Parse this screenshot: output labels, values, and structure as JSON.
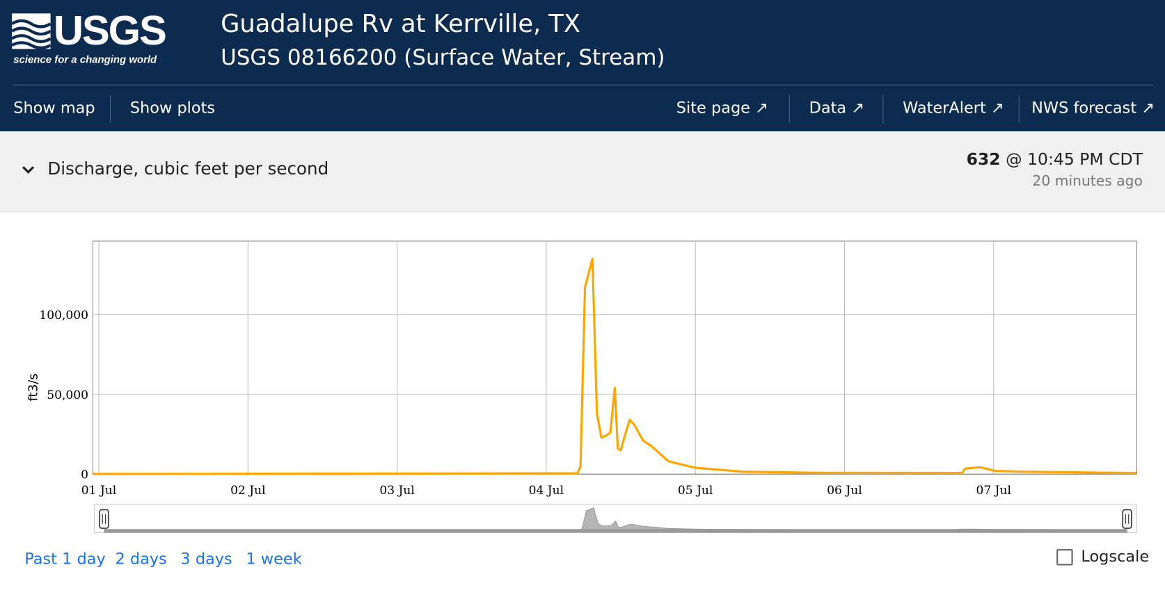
{
  "header": {
    "logo_text": "USGS",
    "logo_tagline": "science for a changing world",
    "title": "Guadalupe Rv at Kerrville, TX",
    "subtitle": "USGS 08166200 (Surface Water, Stream)"
  },
  "nav": {
    "left": [
      "Show map",
      "Show plots"
    ],
    "right": [
      "Site page",
      "Data",
      "WaterAlert",
      "NWS forecast"
    ]
  },
  "parameter": {
    "name": "Discharge, cubic feet per second",
    "latest_value": "632",
    "latest_time": "@ 10:45 PM CDT",
    "age": "20 minutes ago"
  },
  "chart_data": {
    "type": "line",
    "ylabel": "ft3/s",
    "x": [
      -0.04,
      3.21,
      3.23,
      3.26,
      3.31,
      3.34,
      3.37,
      3.4,
      3.43,
      3.46,
      3.48,
      3.5,
      3.53,
      3.56,
      3.59,
      3.65,
      3.7,
      3.82,
      4.0,
      4.32,
      4.82,
      5.79,
      5.81,
      5.91,
      6.01,
      6.21,
      6.96
    ],
    "series": [
      {
        "color": "#ffa500",
        "values": [
          100,
          500,
          5000,
          117000,
          135000,
          38000,
          23000,
          24000,
          26000,
          54000,
          16000,
          15000,
          25000,
          34000,
          31000,
          21000,
          18000,
          8000,
          4000,
          1500,
          800,
          700,
          3500,
          4300,
          2000,
          1500,
          632
        ]
      }
    ],
    "xlim": [
      -0.04,
      6.96
    ],
    "xticks": [
      {
        "value": 0,
        "label": "01 Jul"
      },
      {
        "value": 1,
        "label": "02 Jul"
      },
      {
        "value": 2,
        "label": "03 Jul"
      },
      {
        "value": 3,
        "label": "04 Jul"
      },
      {
        "value": 4,
        "label": "05 Jul"
      },
      {
        "value": 5,
        "label": "06 Jul"
      },
      {
        "value": 6,
        "label": "07 Jul"
      }
    ],
    "ylim": [
      0,
      146000
    ],
    "yticks": [
      0,
      {
        "value": 50000,
        "label": "50,000"
      },
      {
        "value": 100000,
        "label": "100,000"
      }
    ],
    "grid": true,
    "log_scale": false
  },
  "time_ranges": [
    "Past 1 day",
    "2 days",
    "3 days",
    "1 week"
  ],
  "logscale_label": "Logscale"
}
